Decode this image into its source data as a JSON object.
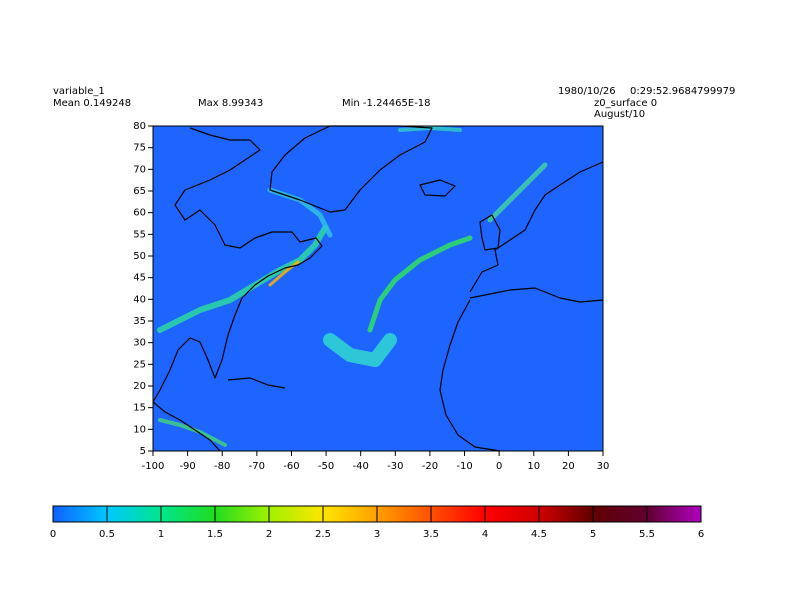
{
  "header": {
    "variable": "variable_1",
    "mean": "Mean 0.149248",
    "max": "Max 8.99343",
    "min": "Min -1.24465E-18",
    "date": "1980/10/26",
    "time": "0:29:52.9684799979",
    "level": "z0_surface 0",
    "season": "August/10"
  },
  "map": {
    "xlim": [
      -100,
      30
    ],
    "ylim": [
      5,
      80
    ],
    "xticks": [
      -100,
      -90,
      -80,
      -70,
      -60,
      -50,
      -40,
      -30,
      -20,
      -10,
      0,
      10,
      20,
      30
    ],
    "yticks": [
      5,
      10,
      15,
      20,
      25,
      30,
      35,
      40,
      45,
      50,
      55,
      60,
      65,
      70,
      75,
      80
    ],
    "background": "#1e64ff"
  },
  "colorbar": {
    "ticks": [
      0,
      0.5,
      1,
      1.5,
      2,
      2.5,
      3,
      3.5,
      4,
      4.5,
      5,
      5.5,
      6
    ],
    "colors": [
      "#1060ff",
      "#00c8ff",
      "#00e68c",
      "#20dc20",
      "#a0f000",
      "#ffe600",
      "#ffa000",
      "#ff5000",
      "#ff0000",
      "#d00000",
      "#600000",
      "#600030",
      "#b000c0"
    ]
  }
}
